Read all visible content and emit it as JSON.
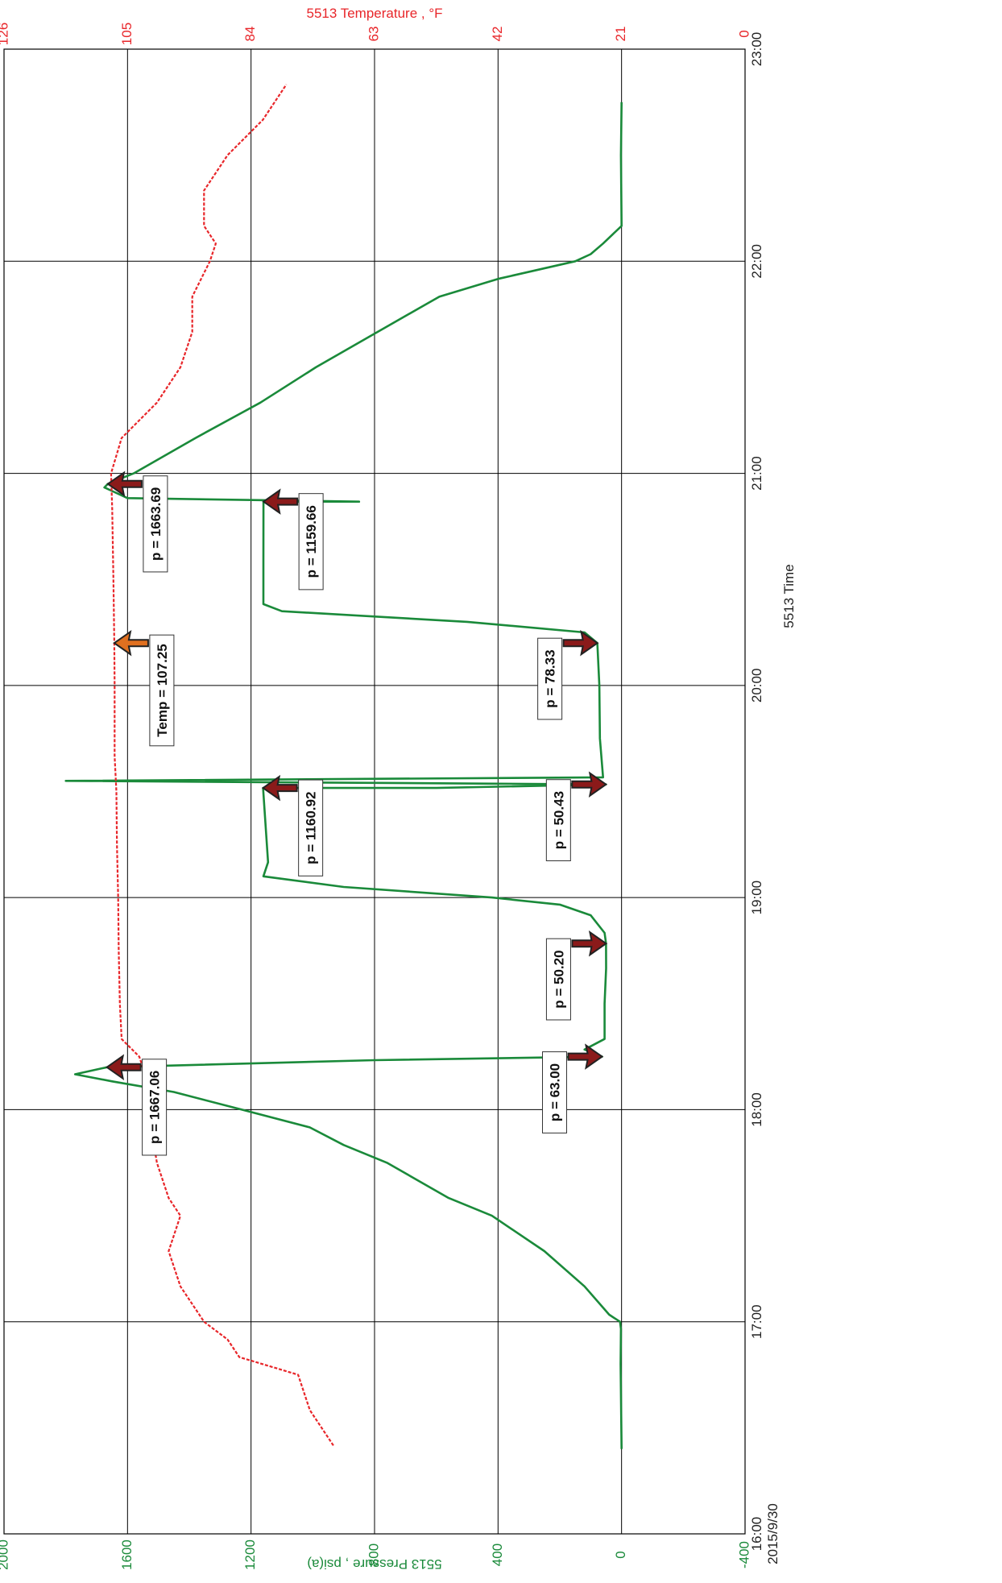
{
  "chart_data": {
    "type": "line",
    "xlabel": "5513 Time",
    "x_ticks": [
      "16:00",
      "17:00",
      "18:00",
      "19:00",
      "20:00",
      "21:00",
      "22:00",
      "23:00"
    ],
    "x_date_label": "2015/9/30",
    "xlim": [
      "16:00",
      "23:00"
    ],
    "y_left": {
      "label": "5513 Pressure , psi(a)",
      "color": "#1a8a3a",
      "ticks": [
        "2000",
        "1600",
        "1200",
        "800",
        "400",
        "0",
        "-400"
      ],
      "range": [
        -400,
        2000
      ]
    },
    "y_right": {
      "label": "5513 Temperature , °F",
      "color": "#e8262a",
      "ticks": [
        "126",
        "105",
        "84",
        "63",
        "42",
        "21",
        "0"
      ],
      "range": [
        0,
        126
      ]
    },
    "grid": true,
    "series": [
      {
        "name": "5513 Pressure",
        "axis": "left",
        "color": "#1a8a3a",
        "points": [
          [
            "16:24",
            0
          ],
          [
            "16:48",
            3
          ],
          [
            "16:58",
            2
          ],
          [
            "17:00",
            5
          ],
          [
            "17:02",
            40
          ],
          [
            "17:10",
            120
          ],
          [
            "17:20",
            250
          ],
          [
            "17:30",
            420
          ],
          [
            "17:35",
            560
          ],
          [
            "17:40",
            660
          ],
          [
            "17:45",
            760
          ],
          [
            "17:50",
            900
          ],
          [
            "17:55",
            1010
          ],
          [
            "18:00",
            1230
          ],
          [
            "18:05",
            1450
          ],
          [
            "18:08",
            1650
          ],
          [
            "18:10",
            1770
          ],
          [
            "18:12",
            1667
          ],
          [
            "18:14",
            800
          ],
          [
            "18:15",
            63
          ],
          [
            "18:17",
            120
          ],
          [
            "18:20",
            55
          ],
          [
            "18:30",
            55
          ],
          [
            "18:40",
            50
          ],
          [
            "18:47",
            50.2
          ],
          [
            "18:50",
            55
          ],
          [
            "18:55",
            100
          ],
          [
            "18:58",
            200
          ],
          [
            "19:00",
            420
          ],
          [
            "19:03",
            900
          ],
          [
            "19:06",
            1160
          ],
          [
            "19:10",
            1145
          ],
          [
            "19:31",
            1160.92
          ],
          [
            "19:31",
            600
          ],
          [
            "19:32",
            50.43
          ],
          [
            "19:33",
            1800
          ],
          [
            "19:34",
            60
          ],
          [
            "19:45",
            70
          ],
          [
            "20:00",
            72
          ],
          [
            "20:12",
            78.33
          ],
          [
            "20:15",
            120
          ],
          [
            "20:18",
            500
          ],
          [
            "20:21",
            1100
          ],
          [
            "20:23",
            1160
          ],
          [
            "20:35",
            1160
          ],
          [
            "20:52",
            1159.66
          ],
          [
            "20:52",
            850
          ],
          [
            "20:53",
            1600
          ],
          [
            "20:55",
            1650
          ],
          [
            "20:56",
            1675
          ],
          [
            "20:57",
            1663.69
          ],
          [
            "21:00",
            1580
          ],
          [
            "21:10",
            1380
          ],
          [
            "21:20",
            1170
          ],
          [
            "21:30",
            990
          ],
          [
            "21:40",
            790
          ],
          [
            "21:50",
            590
          ],
          [
            "21:55",
            400
          ],
          [
            "22:00",
            150
          ],
          [
            "22:02",
            100
          ],
          [
            "22:05",
            60
          ],
          [
            "22:10",
            0
          ],
          [
            "22:30",
            2
          ],
          [
            "22:45",
            0
          ]
        ]
      },
      {
        "name": "5513 Temperature",
        "axis": "right",
        "color": "#e8262a",
        "points": [
          [
            "16:25",
            70
          ],
          [
            "16:35",
            74
          ],
          [
            "16:45",
            76
          ],
          [
            "16:50",
            86
          ],
          [
            "16:55",
            88
          ],
          [
            "17:00",
            92
          ],
          [
            "17:10",
            96
          ],
          [
            "17:20",
            98
          ],
          [
            "17:30",
            96
          ],
          [
            "17:35",
            98
          ],
          [
            "17:45",
            100
          ],
          [
            "17:55",
            101
          ],
          [
            "18:05",
            101
          ],
          [
            "18:15",
            103
          ],
          [
            "18:20",
            106
          ],
          [
            "18:30",
            106.3
          ],
          [
            "18:45",
            106.5
          ],
          [
            "19:00",
            106.6
          ],
          [
            "19:15",
            106.8
          ],
          [
            "19:30",
            106.9
          ],
          [
            "19:40",
            107.2
          ],
          [
            "20:00",
            107.2
          ],
          [
            "20:12",
            107.25
          ],
          [
            "20:30",
            107.4
          ],
          [
            "20:50",
            107.6
          ],
          [
            "21:00",
            107.8
          ],
          [
            "21:10",
            106
          ],
          [
            "21:20",
            100
          ],
          [
            "21:30",
            96
          ],
          [
            "21:40",
            94
          ],
          [
            "21:50",
            94
          ],
          [
            "22:00",
            91
          ],
          [
            "22:05",
            90
          ],
          [
            "22:10",
            92
          ],
          [
            "22:20",
            92
          ],
          [
            "22:25",
            90
          ],
          [
            "22:30",
            88
          ],
          [
            "22:40",
            82
          ],
          [
            "22:50",
            78
          ]
        ]
      }
    ],
    "annotations": [
      {
        "text": "p = 1667.06",
        "x": "18:12",
        "y": 1667.06,
        "axis": "left"
      },
      {
        "text": "p = 63.00",
        "x": "18:15",
        "y": 63.0,
        "axis": "left"
      },
      {
        "text": "p = 50.20",
        "x": "18:47",
        "y": 50.2,
        "axis": "left"
      },
      {
        "text": "p = 1160.92",
        "x": "19:31",
        "y": 1160.92,
        "axis": "left"
      },
      {
        "text": "p = 50.43",
        "x": "19:32",
        "y": 50.43,
        "axis": "left"
      },
      {
        "text": "Temp = 107.25",
        "x": "20:12",
        "y": 107.25,
        "axis": "right"
      },
      {
        "text": "p = 78.33",
        "x": "20:12",
        "y": 78.33,
        "axis": "left"
      },
      {
        "text": "p = 1159.66",
        "x": "20:52",
        "y": 1159.66,
        "axis": "left"
      },
      {
        "text": "p = 1663.69",
        "x": "20:57",
        "y": 1663.69,
        "axis": "left"
      }
    ]
  },
  "colors": {
    "pressure": "#1a8a3a",
    "temperature": "#e8262a",
    "grid": "#000000",
    "arrow_fill": "#8b1a1a",
    "arrow_fill_temp": "#e07020"
  }
}
